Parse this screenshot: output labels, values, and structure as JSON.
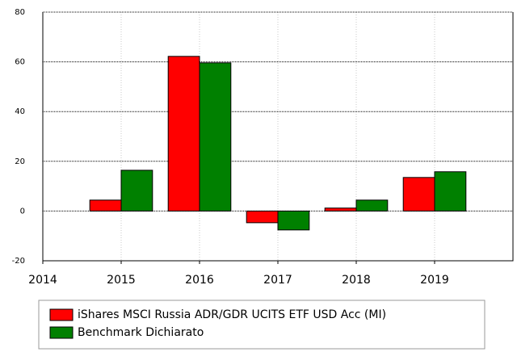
{
  "chart_data": {
    "type": "bar",
    "x": [
      2015,
      2016,
      2017,
      2018,
      2019
    ],
    "series": [
      {
        "name": "iShares MSCI Russia ADR/GDR UCITS ETF USD Acc (MI)",
        "color": "#ff0000",
        "values": [
          4.4,
          62.2,
          -4.7,
          1.2,
          13.5
        ]
      },
      {
        "name": "Benchmark Dichiarato",
        "color": "#008000",
        "values": [
          16.4,
          59.6,
          -7.6,
          4.4,
          15.8
        ]
      }
    ],
    "xlim": [
      2014,
      2020
    ],
    "xticks": [
      2014,
      2015,
      2016,
      2017,
      2018,
      2019
    ],
    "ylim": [
      -20,
      80
    ],
    "yticks": [
      -20,
      0,
      20,
      40,
      60,
      80
    ],
    "grid": true
  }
}
